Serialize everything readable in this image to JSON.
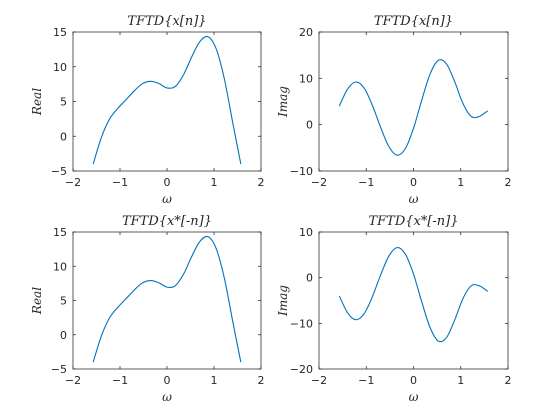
{
  "chart_data": [
    {
      "type": "line",
      "title": "TFTD{x[n]}",
      "xlabel": "ω",
      "ylabel": "Real",
      "xlim": [
        -2,
        2
      ],
      "ylim": [
        -5,
        15
      ],
      "xticks": [
        -2,
        -1,
        0,
        1,
        2
      ],
      "yticks": [
        -5,
        0,
        5,
        10,
        15
      ],
      "grid": false,
      "series": [
        {
          "color": "#0072BD",
          "x": [
            -1.5708,
            -1.3963,
            -1.2217,
            -1.0472,
            -0.8727,
            -0.6981,
            -0.5236,
            -0.3491,
            -0.1745,
            0.0,
            0.1745,
            0.3491,
            0.5236,
            0.6981,
            0.8727,
            1.0472,
            1.2217,
            1.3963,
            1.5708
          ],
          "y": [
            -4.0,
            -0.17,
            2.48,
            4.0,
            5.25,
            6.52,
            7.56,
            7.91,
            7.59,
            6.95,
            7.15,
            8.81,
            11.39,
            13.61,
            14.32,
            12.56,
            8.21,
            2.03,
            -4.0
          ]
        }
      ]
    },
    {
      "type": "line",
      "title": "TFTD{x[n]}",
      "xlabel": "ω",
      "ylabel": "Imag",
      "xlim": [
        -2,
        2
      ],
      "ylim": [
        -10,
        20
      ],
      "xticks": [
        -2,
        -1,
        0,
        1,
        2
      ],
      "yticks": [
        -10,
        0,
        10,
        20
      ],
      "grid": false,
      "series": [
        {
          "color": "#0072BD",
          "x": [
            -1.5708,
            -1.3963,
            -1.2217,
            -1.0472,
            -0.8727,
            -0.6981,
            -0.5236,
            -0.3491,
            -0.1745,
            0.0,
            0.1745,
            0.3491,
            0.5236,
            0.6981,
            0.8727,
            1.0472,
            1.2217,
            1.3963,
            1.5708
          ],
          "y": [
            4.0,
            7.66,
            9.21,
            7.92,
            4.25,
            -0.51,
            -4.68,
            -6.58,
            -5.2,
            -0.79,
            5.29,
            10.89,
            13.88,
            13.11,
            9.25,
            4.56,
            1.77,
            1.79,
            3.0
          ]
        }
      ]
    },
    {
      "type": "line",
      "title": "TFTD{x*[-n]}",
      "xlabel": "ω",
      "ylabel": "Real",
      "xlim": [
        -2,
        2
      ],
      "ylim": [
        -5,
        15
      ],
      "xticks": [
        -2,
        -1,
        0,
        1,
        2
      ],
      "yticks": [
        -5,
        0,
        5,
        10,
        15
      ],
      "grid": false,
      "series": [
        {
          "color": "#0072BD",
          "x": [
            -1.5708,
            -1.3963,
            -1.2217,
            -1.0472,
            -0.8727,
            -0.6981,
            -0.5236,
            -0.3491,
            -0.1745,
            0.0,
            0.1745,
            0.3491,
            0.5236,
            0.6981,
            0.8727,
            1.0472,
            1.2217,
            1.3963,
            1.5708
          ],
          "y": [
            -4.0,
            -0.17,
            2.48,
            4.0,
            5.25,
            6.52,
            7.56,
            7.91,
            7.59,
            6.95,
            7.15,
            8.81,
            11.39,
            13.61,
            14.32,
            12.56,
            8.21,
            2.03,
            -4.0
          ]
        }
      ]
    },
    {
      "type": "line",
      "title": "TFTD{x*[-n]}",
      "xlabel": "ω",
      "ylabel": "Imag",
      "xlim": [
        -2,
        2
      ],
      "ylim": [
        -20,
        10
      ],
      "xticks": [
        -2,
        -1,
        0,
        1,
        2
      ],
      "yticks": [
        -20,
        -10,
        0,
        10
      ],
      "grid": false,
      "series": [
        {
          "color": "#0072BD",
          "x": [
            -1.5708,
            -1.3963,
            -1.2217,
            -1.0472,
            -0.8727,
            -0.6981,
            -0.5236,
            -0.3491,
            -0.1745,
            0.0,
            0.1745,
            0.3491,
            0.5236,
            0.6981,
            0.8727,
            1.0472,
            1.2217,
            1.3963,
            1.5708
          ],
          "y": [
            -4.0,
            -7.66,
            -9.21,
            -7.92,
            -4.25,
            0.51,
            4.68,
            6.58,
            5.2,
            0.79,
            -5.29,
            -10.89,
            -13.88,
            -13.11,
            -9.25,
            -4.56,
            -1.77,
            -1.79,
            -3.0
          ]
        }
      ]
    }
  ]
}
